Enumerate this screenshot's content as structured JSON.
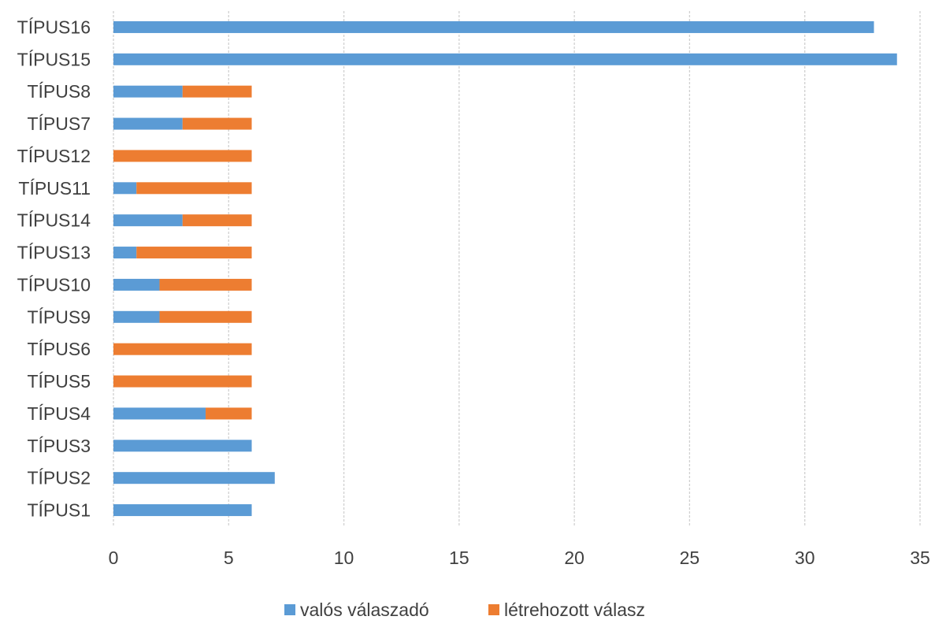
{
  "chart_data": {
    "type": "bar",
    "orientation": "horizontal",
    "stacked": true,
    "categories": [
      "TÍPUS1",
      "TÍPUS2",
      "TÍPUS3",
      "TÍPUS4",
      "TÍPUS5",
      "TÍPUS6",
      "TÍPUS9",
      "TÍPUS10",
      "TÍPUS13",
      "TÍPUS14",
      "TÍPUS11",
      "TÍPUS12",
      "TÍPUS7",
      "TÍPUS8",
      "TÍPUS15",
      "TÍPUS16"
    ],
    "series": [
      {
        "name": "valós válaszadó",
        "color": "#5b9bd5",
        "values": [
          6,
          7,
          6,
          4,
          0,
          0,
          2,
          2,
          1,
          3,
          1,
          0,
          3,
          3,
          34,
          33
        ]
      },
      {
        "name": "létrehozott válasz",
        "color": "#ed7d31",
        "values": [
          0,
          0,
          0,
          2,
          6,
          6,
          4,
          4,
          5,
          3,
          5,
          6,
          3,
          3,
          0,
          0
        ]
      }
    ],
    "xlim": [
      0,
      35
    ],
    "xticks": [
      0,
      5,
      10,
      15,
      20,
      25,
      30,
      35
    ],
    "xtick_labels": [
      "0",
      "5",
      "10",
      "15",
      "20",
      "25",
      "30",
      "35"
    ],
    "grid": true,
    "legend_position": "bottom",
    "title": "",
    "xlabel": "",
    "ylabel": ""
  },
  "legend": {
    "items": [
      {
        "label": "valós válaszadó",
        "color": "#5b9bd5"
      },
      {
        "label": "létrehozott válasz",
        "color": "#ed7d31"
      }
    ]
  }
}
